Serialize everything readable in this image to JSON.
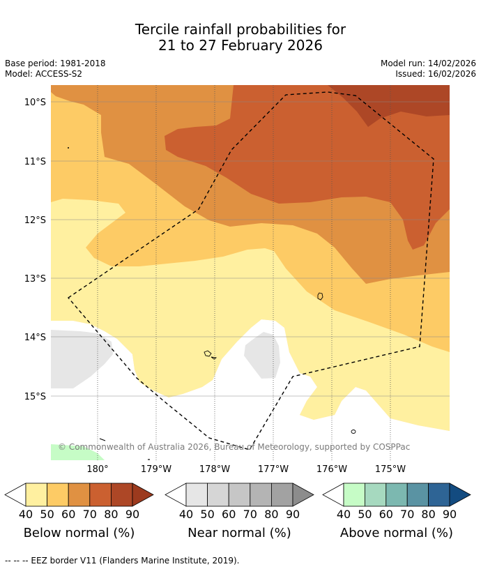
{
  "title_line1": "Tercile rainfall probabilities for",
  "title_line2": "21 to 27 February 2026",
  "base_period": "Base period: 1981-2018",
  "model": "Model: ACCESS-S2",
  "model_run": "Model run: 14/02/2026",
  "issued": "Issued: 16/02/2026",
  "lat_labels": [
    "10°S",
    "11°S",
    "12°S",
    "13°S",
    "14°S",
    "15°S"
  ],
  "lon_labels": [
    "180°",
    "179°W",
    "178°W",
    "177°W",
    "176°W",
    "175°W"
  ],
  "copyright": "© Commonwealth of Australia 2026, Bureau of Meteorology, supported by COSPPac",
  "colorbars": [
    {
      "title": "Below normal (%)",
      "ticks": [
        "40",
        "50",
        "60",
        "70",
        "80",
        "90"
      ],
      "colors": [
        "#fff0a0",
        "#fdcb65",
        "#e09142",
        "#cb6030",
        "#ad4726",
        "#9c3a1e"
      ]
    },
    {
      "title": "Near normal (%)",
      "ticks": [
        "40",
        "50",
        "60",
        "70",
        "80",
        "90"
      ],
      "colors": [
        "#e6e6e6",
        "#d6d6d6",
        "#c6c6c6",
        "#b4b4b4",
        "#a2a2a2",
        "#8c8c8c"
      ]
    },
    {
      "title": "Above normal (%)",
      "ticks": [
        "40",
        "50",
        "60",
        "70",
        "80",
        "90"
      ],
      "colors": [
        "#c6fcc6",
        "#a6d9bf",
        "#7cb8b0",
        "#5a93a3",
        "#2e6495",
        "#134b80"
      ]
    }
  ],
  "footer": "--  --  -- EEZ border V11 (Flanders Marine Institute, 2019).",
  "colors": {
    "below_40_50": "#fff0a0",
    "below_50_60": "#fdcb65",
    "below_60_70": "#e09142",
    "below_70_80": "#cb6030",
    "below_80_90": "#ad4726",
    "near_40_50": "#e6e6e6",
    "above_40_50": "#c6fcc6"
  }
}
